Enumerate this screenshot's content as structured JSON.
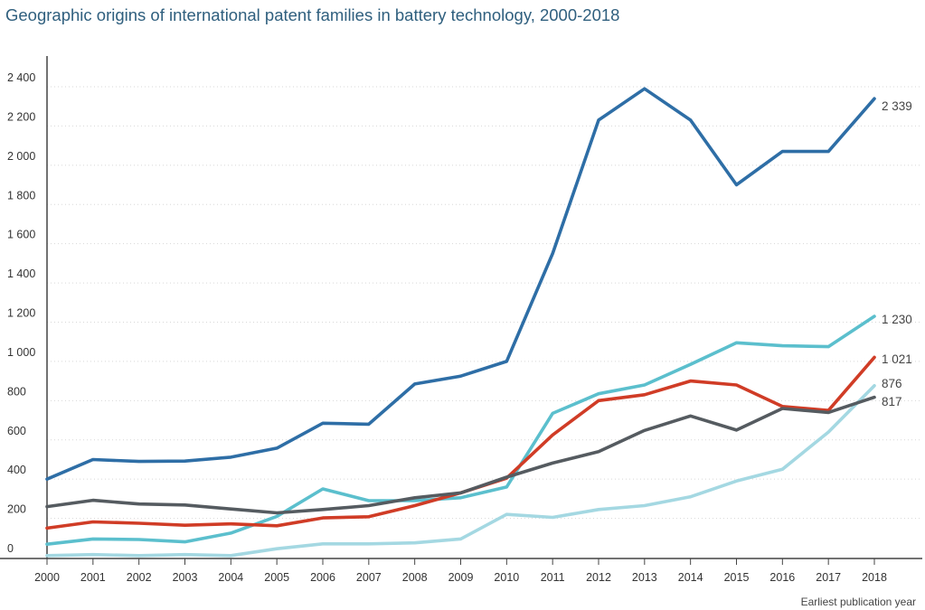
{
  "title": "Geographic origins of international patent families in battery technology, 2000-2018",
  "chart_data": {
    "type": "line",
    "title": "Geographic origins of international patent families in battery technology, 2000-2018",
    "xlabel": "Earliest publication year",
    "ylabel": "",
    "x": [
      "2000",
      "2001",
      "2002",
      "2003",
      "2004",
      "2005",
      "2006",
      "2007",
      "2008",
      "2009",
      "2010",
      "2011",
      "2012",
      "2013",
      "2014",
      "2015",
      "2016",
      "2017",
      "2018"
    ],
    "ylim": [
      0,
      2500
    ],
    "yticks": [
      0,
      200,
      400,
      600,
      800,
      1000,
      1200,
      1400,
      1600,
      1800,
      2000,
      2200,
      2400
    ],
    "ytick_labels": [
      "0",
      "200",
      "400",
      "600",
      "800",
      "1 000",
      "1 200",
      "1 400",
      "1 600",
      "1 800",
      "2 000",
      "2 200",
      "2 400"
    ],
    "grid": "horizontal dotted",
    "series": [
      {
        "color": "#2e6ea6",
        "end_label": "2 339",
        "values": [
          400,
          500,
          490,
          492,
          512,
          558,
          685,
          680,
          885,
          925,
          1000,
          1550,
          2230,
          2390,
          2230,
          1900,
          2070,
          2070,
          2339
        ]
      },
      {
        "color": "#5bbfcd",
        "end_label": "1 230",
        "values": [
          68,
          95,
          92,
          80,
          125,
          210,
          350,
          290,
          290,
          305,
          360,
          735,
          835,
          880,
          985,
          1095,
          1080,
          1075,
          1230
        ]
      },
      {
        "color": "#d03c26",
        "end_label": "1 021",
        "values": [
          150,
          182,
          175,
          165,
          172,
          162,
          202,
          208,
          265,
          330,
          405,
          625,
          800,
          830,
          900,
          880,
          770,
          750,
          1021
        ]
      },
      {
        "color": "#a4d8e2",
        "end_label": "876",
        "values": [
          10,
          15,
          10,
          15,
          10,
          45,
          70,
          70,
          75,
          95,
          220,
          205,
          245,
          265,
          310,
          390,
          450,
          640,
          876
        ]
      },
      {
        "color": "#555b60",
        "end_label": "817",
        "values": [
          260,
          292,
          273,
          268,
          248,
          228,
          245,
          265,
          305,
          330,
          410,
          482,
          540,
          648,
          722,
          650,
          760,
          740,
          817
        ]
      }
    ]
  }
}
